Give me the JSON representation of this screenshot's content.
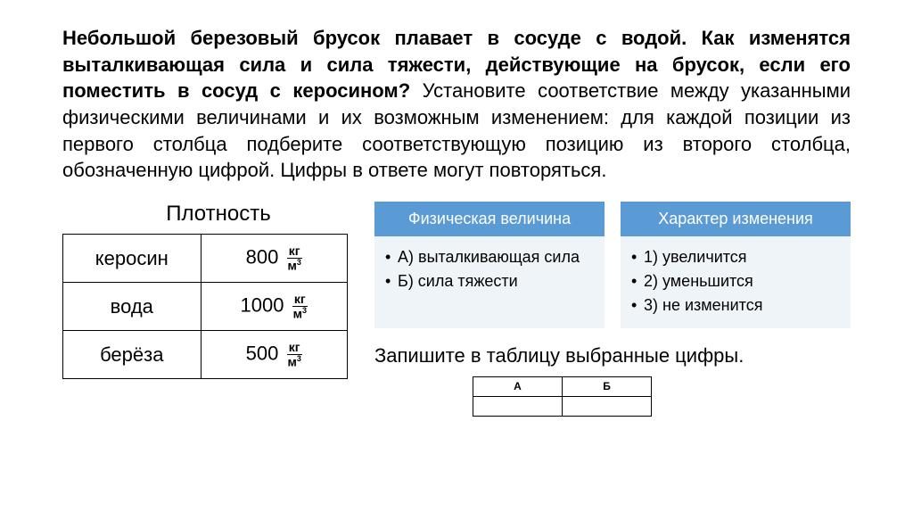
{
  "question": {
    "bold_part": "Небольшой березовый брусок плавает в сосуде с водой. Как изменятся выталкивающая сила и сила тяжести, действующие на брусок, если его поместить в сосуд с керосином?",
    "rest": "Установите соответствие между указанными физическими величинами и их возможным изменением: для каждой позиции из первого столбца подберите соответствующую позицию из второго столбца, обозначенную цифрой. Цифры в ответе могут повторяться."
  },
  "density": {
    "title": "Плотность",
    "rows": [
      {
        "name": "керосин",
        "value": "800",
        "num": "кг",
        "den": "м",
        "exp": "3"
      },
      {
        "name": "вода",
        "value": "1000",
        "num": "кг",
        "den": "м",
        "exp": "3"
      },
      {
        "name": "берёза",
        "value": "500",
        "num": "кг",
        "den": "м",
        "exp": "3"
      }
    ]
  },
  "card_left": {
    "header": "Физическая величина",
    "items": [
      "А) выталкивающая сила",
      "Б) сила тяжести"
    ]
  },
  "card_right": {
    "header": "Характер изменения",
    "items": [
      "1) увеличится",
      "2) уменьшится",
      "3) не изменится"
    ]
  },
  "instruction": "Запишите в таблицу выбранные цифры.",
  "answer_headers": {
    "a": "А",
    "b": "Б"
  },
  "colors": {
    "card_header_bg": "#5b9bd5",
    "card_body_bg": "#eff4f8",
    "card_header_text": "#ffffff",
    "page_bg": "#ffffff",
    "text": "#000000"
  },
  "typography": {
    "question_fontsize": 22,
    "density_title_fontsize": 24,
    "table_fontsize": 22,
    "card_header_fontsize": 18,
    "card_body_fontsize": 18,
    "instruction_fontsize": 22,
    "answer_header_fontsize": 12
  }
}
